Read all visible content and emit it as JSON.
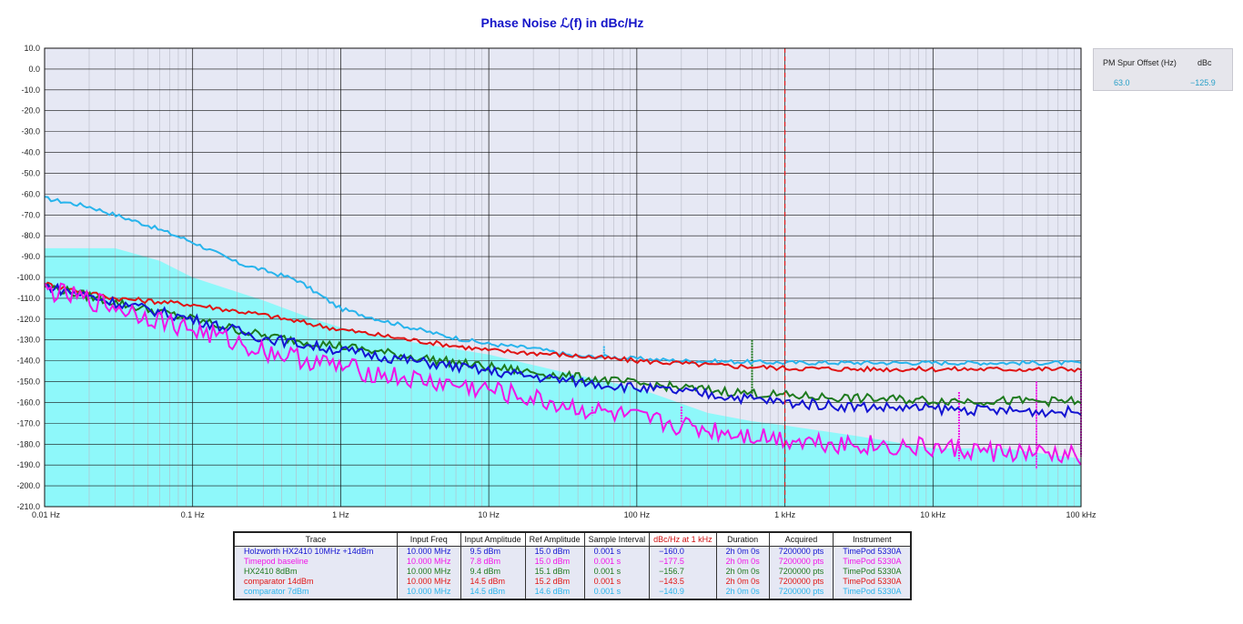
{
  "title": "Phase Noise ℒ(f) in dBc/Hz",
  "spur_table": {
    "headers": [
      "PM Spur Offset (Hz)",
      "dBc"
    ],
    "rows": [
      [
        "63.0",
        "−125.9"
      ]
    ]
  },
  "chart_data": {
    "type": "line",
    "title": "Phase Noise ℒ(f) in dBc/Hz",
    "xscale": "log",
    "xlim": [
      0.01,
      100000
    ],
    "ylim": [
      -210,
      10
    ],
    "x_ticks": [
      {
        "v": 0.01,
        "label": "0.01 Hz"
      },
      {
        "v": 0.1,
        "label": "0.1 Hz"
      },
      {
        "v": 1,
        "label": "1 Hz"
      },
      {
        "v": 10,
        "label": "10 Hz"
      },
      {
        "v": 100,
        "label": "100 Hz"
      },
      {
        "v": 1000,
        "label": "1 kHz"
      },
      {
        "v": 10000,
        "label": "10 kHz"
      },
      {
        "v": 100000,
        "label": "100 kHz"
      }
    ],
    "y_ticks": [
      {
        "v": 10,
        "label": "10.0"
      },
      {
        "v": 0,
        "label": "0.0"
      },
      {
        "v": -10,
        "label": "-10.0"
      },
      {
        "v": -20,
        "label": "-20.0"
      },
      {
        "v": -30,
        "label": "-30.0"
      },
      {
        "v": -40,
        "label": "-40.0"
      },
      {
        "v": -50,
        "label": "-50.0"
      },
      {
        "v": -60,
        "label": "-60.0"
      },
      {
        "v": -70,
        "label": "-70.0"
      },
      {
        "v": -80,
        "label": "-80.0"
      },
      {
        "v": -90,
        "label": "-90.0"
      },
      {
        "v": -100,
        "label": "-100.0"
      },
      {
        "v": -110,
        "label": "-110.0"
      },
      {
        "v": -120,
        "label": "-120.0"
      },
      {
        "v": -130,
        "label": "-130.0"
      },
      {
        "v": -140,
        "label": "-140.0"
      },
      {
        "v": -150,
        "label": "-150.0"
      },
      {
        "v": -160,
        "label": "-160.0"
      },
      {
        "v": -170,
        "label": "-170.0"
      },
      {
        "v": -180,
        "label": "-180.0"
      },
      {
        "v": -190,
        "label": "-190.0"
      },
      {
        "v": -200,
        "label": "-200.0"
      },
      {
        "v": -210,
        "label": "-210.0"
      }
    ],
    "marker_x": 1000,
    "noise_floor": {
      "color": "#8ef8fa",
      "x": [
        0.01,
        0.03,
        0.06,
        0.1,
        0.2,
        0.3,
        0.6,
        1,
        3,
        10,
        30,
        100,
        300,
        600,
        1000,
        3000,
        10000,
        30000,
        100000
      ],
      "y": [
        -86,
        -86,
        -92,
        -100,
        -107,
        -111,
        -119,
        -124,
        -131,
        -137,
        -145,
        -153,
        -165,
        -169,
        -171,
        -176,
        -182,
        -182,
        -187
      ]
    },
    "series": [
      {
        "name": "comparator 7dBm",
        "color": "#28b4ec",
        "x": [
          0.01,
          0.02,
          0.05,
          0.1,
          0.2,
          0.5,
          1,
          2,
          5,
          10,
          20,
          40,
          60,
          100,
          200,
          500,
          1000,
          10000,
          100000
        ],
        "y": [
          -62,
          -66,
          -75,
          -83,
          -93,
          -101,
          -115,
          -121,
          -128,
          -132,
          -134,
          -138,
          -138,
          -139,
          -140,
          -140.5,
          -140.9,
          -141,
          -141
        ]
      },
      {
        "name": "comparator 14dBm",
        "color": "#e01414",
        "x": [
          0.01,
          0.03,
          0.1,
          0.3,
          1,
          3,
          10,
          30,
          100,
          300,
          1000,
          3000,
          10000,
          100000
        ],
        "y": [
          -103,
          -110,
          -113,
          -118,
          -125,
          -130,
          -135,
          -137,
          -140,
          -142,
          -143.5,
          -144,
          -144,
          -144
        ]
      },
      {
        "name": "HX2410 8dBm",
        "color": "#1e7a1e",
        "x": [
          0.01,
          0.03,
          0.1,
          0.3,
          1,
          3,
          10,
          30,
          100,
          300,
          1000,
          3000,
          10000,
          100000
        ],
        "y": [
          -104,
          -112,
          -120,
          -128,
          -133,
          -138,
          -143,
          -147,
          -151,
          -154,
          -156.7,
          -158,
          -159,
          -159.5
        ]
      },
      {
        "name": "Holzworth HX2410 10MHz +14dBm",
        "color": "#1414d2",
        "x": [
          0.01,
          0.03,
          0.1,
          0.3,
          1,
          3,
          10,
          30,
          100,
          300,
          1000,
          3000,
          10000,
          30000,
          100000
        ],
        "y": [
          -104,
          -112,
          -120,
          -129,
          -135,
          -140,
          -145,
          -149,
          -153,
          -156,
          -160,
          -162,
          -163,
          -164,
          -164.5
        ]
      },
      {
        "name": "Timepod baseline",
        "color": "#f014e8",
        "x": [
          0.01,
          0.03,
          0.1,
          0.3,
          1,
          3,
          10,
          30,
          100,
          300,
          1000,
          3000,
          10000,
          30000,
          100000
        ],
        "y": [
          -106,
          -114,
          -125,
          -135,
          -143,
          -149,
          -154,
          -161,
          -168,
          -173,
          -177.5,
          -180,
          -182,
          -184,
          -186
        ]
      }
    ],
    "spikes": [
      {
        "x": 60,
        "color": "#28b4ec",
        "y0": -133,
        "y1": -138
      },
      {
        "x": 600,
        "color": "#1e7a1e",
        "y0": -130,
        "y1": -158
      },
      {
        "x": 50,
        "color": "#f014e8",
        "y0": -162,
        "y1": -166
      },
      {
        "x": 200,
        "color": "#f014e8",
        "y0": -162,
        "y1": -170
      },
      {
        "x": 15000,
        "color": "#f014e8",
        "y0": -155,
        "y1": -188
      },
      {
        "x": 50000,
        "color": "#f014e8",
        "y0": -150,
        "y1": -192
      },
      {
        "x": 100000,
        "color": "#f014e8",
        "y0": -145,
        "y1": -186
      }
    ]
  },
  "legend": {
    "headers": [
      "Trace",
      "Input Freq",
      "Input Amplitude",
      "Ref Amplitude",
      "Sample Interval",
      "dBc/Hz at 1 kHz",
      "Duration",
      "Acquired",
      "Instrument"
    ],
    "rows": [
      {
        "color": "#1414d2",
        "cells": [
          "Holzworth HX2410 10MHz +14dBm",
          "10.000 MHz",
          "9.5 dBm",
          "15.0 dBm",
          "0.001 s",
          "−160.0",
          "2h 0m 0s",
          "7200000 pts",
          "TimePod 5330A"
        ]
      },
      {
        "color": "#f014e8",
        "cells": [
          "Timepod baseline",
          "10.000 MHz",
          "7.8 dBm",
          "15.0 dBm",
          "0.001 s",
          "−177.5",
          "2h 0m 0s",
          "7200000 pts",
          "TimePod 5330A"
        ]
      },
      {
        "color": "#1e7a1e",
        "cells": [
          "HX2410 8dBm",
          "10.000 MHz",
          "9.4 dBm",
          "15.1 dBm",
          "0.001 s",
          "−156.7",
          "2h 0m 0s",
          "7200000 pts",
          "TimePod 5330A"
        ]
      },
      {
        "color": "#e01414",
        "cells": [
          "comparator 14dBm",
          "10.000 MHz",
          "14.5 dBm",
          "15.2 dBm",
          "0.001 s",
          "−143.5",
          "2h 0m 0s",
          "7200000 pts",
          "TimePod 5330A"
        ]
      },
      {
        "color": "#28b4ec",
        "cells": [
          "comparator 7dBm",
          "10.000 MHz",
          "14.5 dBm",
          "14.6 dBm",
          "0.001 s",
          "−140.9",
          "2h 0m 0s",
          "7200000 pts",
          "TimePod 5330A"
        ]
      }
    ]
  }
}
